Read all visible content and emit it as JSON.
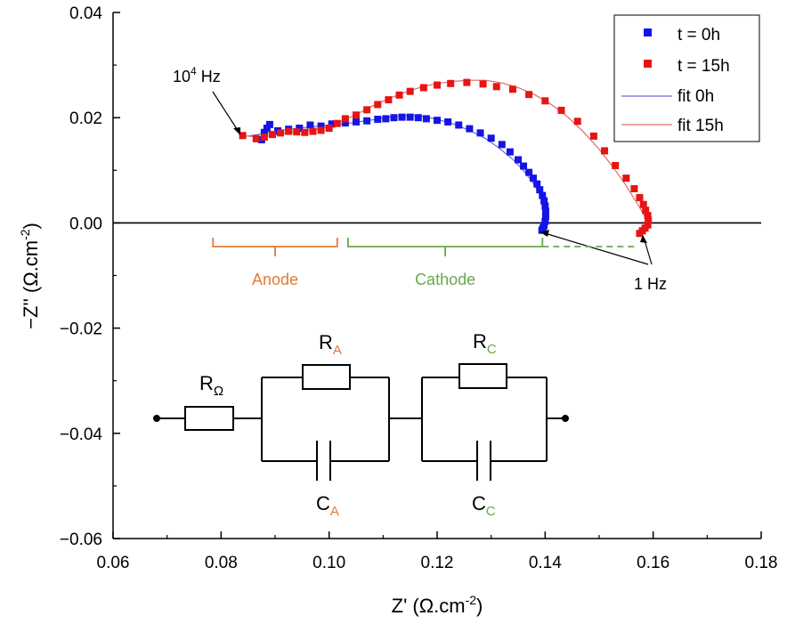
{
  "chart_data": {
    "type": "scatter",
    "x_axis": {
      "label_main": "Z' (Ω.cm",
      "label_sup": "-2",
      "label_end": ")",
      "range": [
        0.06,
        0.18
      ],
      "ticks": [
        "0.06",
        "0.08",
        "0.10",
        "0.12",
        "0.14",
        "0.16",
        "0.18"
      ],
      "tick_values": [
        0.06,
        0.08,
        0.1,
        0.12,
        0.14,
        0.16,
        0.18
      ]
    },
    "y_axis": {
      "label_main": "−Z'' (Ω.cm",
      "label_sup": "-2",
      "label_end": ")",
      "range": [
        -0.06,
        0.04
      ],
      "ticks": [
        "0.04",
        "0.02",
        "0.00",
        "−0.02",
        "−0.04",
        "−0.06"
      ],
      "tick_values": [
        0.04,
        0.02,
        0.0,
        -0.02,
        -0.04,
        -0.06
      ]
    },
    "zero_line": 0.0,
    "grid": false,
    "legend": {
      "position": "top-right",
      "entries": [
        {
          "label": "t = 0h",
          "kind": "marker",
          "color": "#1414e6"
        },
        {
          "label": "t = 15h",
          "kind": "marker",
          "color": "#e61414"
        },
        {
          "label": "fit 0h",
          "kind": "line",
          "color": "#6b6bd6"
        },
        {
          "label": "fit 15h",
          "kind": "line",
          "color": "#e06a6a"
        }
      ]
    },
    "series": [
      {
        "name": "t = 0h",
        "kind": "scatter",
        "color": "#1414e6",
        "points": [
          [
            0.0875,
            0.0158
          ],
          [
            0.088,
            0.0172
          ],
          [
            0.0885,
            0.018
          ],
          [
            0.089,
            0.0187
          ],
          [
            0.0905,
            0.0175
          ],
          [
            0.0925,
            0.0178
          ],
          [
            0.0945,
            0.018
          ],
          [
            0.0965,
            0.0186
          ],
          [
            0.0985,
            0.0184
          ],
          [
            0.1005,
            0.0188
          ],
          [
            0.103,
            0.019
          ],
          [
            0.105,
            0.0192
          ],
          [
            0.107,
            0.0194
          ],
          [
            0.109,
            0.0197
          ],
          [
            0.1105,
            0.0198
          ],
          [
            0.112,
            0.02
          ],
          [
            0.1135,
            0.0201
          ],
          [
            0.115,
            0.0201
          ],
          [
            0.1165,
            0.02
          ],
          [
            0.118,
            0.0198
          ],
          [
            0.12,
            0.0195
          ],
          [
            0.122,
            0.0192
          ],
          [
            0.124,
            0.0186
          ],
          [
            0.126,
            0.0179
          ],
          [
            0.128,
            0.0171
          ],
          [
            0.13,
            0.0161
          ],
          [
            0.132,
            0.0149
          ],
          [
            0.1335,
            0.0135
          ],
          [
            0.135,
            0.012
          ],
          [
            0.136,
            0.0108
          ],
          [
            0.137,
            0.0096
          ],
          [
            0.1378,
            0.0085
          ],
          [
            0.1385,
            0.0074
          ],
          [
            0.139,
            0.0063
          ],
          [
            0.1395,
            0.0052
          ],
          [
            0.1398,
            0.0042
          ],
          [
            0.14,
            0.0032
          ],
          [
            0.1401,
            0.0022
          ],
          [
            0.1401,
            0.0012
          ],
          [
            0.14,
            0.0003
          ],
          [
            0.1398,
            -0.0005
          ],
          [
            0.1396,
            -0.001
          ],
          [
            0.1394,
            -0.0014
          ]
        ]
      },
      {
        "name": "t = 15h",
        "kind": "scatter",
        "color": "#e61414",
        "points": [
          [
            0.084,
            0.0166
          ],
          [
            0.0865,
            0.016
          ],
          [
            0.088,
            0.0163
          ],
          [
            0.0895,
            0.0168
          ],
          [
            0.091,
            0.0171
          ],
          [
            0.0925,
            0.0174
          ],
          [
            0.094,
            0.0173
          ],
          [
            0.0955,
            0.0172
          ],
          [
            0.097,
            0.0174
          ],
          [
            0.0985,
            0.0176
          ],
          [
            0.1,
            0.018
          ],
          [
            0.1015,
            0.0189
          ],
          [
            0.103,
            0.0198
          ],
          [
            0.105,
            0.0205
          ],
          [
            0.107,
            0.0215
          ],
          [
            0.109,
            0.0225
          ],
          [
            0.111,
            0.0234
          ],
          [
            0.113,
            0.0243
          ],
          [
            0.115,
            0.025
          ],
          [
            0.1175,
            0.0257
          ],
          [
            0.12,
            0.0262
          ],
          [
            0.1225,
            0.0265
          ],
          [
            0.1255,
            0.0267
          ],
          [
            0.1285,
            0.0264
          ],
          [
            0.131,
            0.0259
          ],
          [
            0.134,
            0.0254
          ],
          [
            0.137,
            0.0244
          ],
          [
            0.14,
            0.0232
          ],
          [
            0.143,
            0.0214
          ],
          [
            0.146,
            0.0193
          ],
          [
            0.149,
            0.0165
          ],
          [
            0.151,
            0.0137
          ],
          [
            0.153,
            0.0109
          ],
          [
            0.155,
            0.0085
          ],
          [
            0.1565,
            0.0065
          ],
          [
            0.1575,
            0.0048
          ],
          [
            0.1582,
            0.0035
          ],
          [
            0.1586,
            0.0024
          ],
          [
            0.159,
            0.0014
          ],
          [
            0.1591,
            0.0005
          ],
          [
            0.159,
            -0.0004
          ],
          [
            0.1585,
            -0.001
          ],
          [
            0.158,
            -0.0015
          ],
          [
            0.1575,
            -0.002
          ]
        ]
      },
      {
        "name": "fit 0h",
        "kind": "line",
        "color": "#6b6bd6",
        "points": [
          [
            0.085,
            0.0165
          ],
          [
            0.088,
            0.017
          ],
          [
            0.092,
            0.0177
          ],
          [
            0.096,
            0.0182
          ],
          [
            0.1,
            0.0186
          ],
          [
            0.104,
            0.019
          ],
          [
            0.108,
            0.0196
          ],
          [
            0.111,
            0.0201
          ],
          [
            0.114,
            0.0204
          ],
          [
            0.117,
            0.0203
          ],
          [
            0.12,
            0.0197
          ],
          [
            0.123,
            0.0188
          ],
          [
            0.126,
            0.0176
          ],
          [
            0.129,
            0.016
          ],
          [
            0.1315,
            0.0142
          ],
          [
            0.134,
            0.0121
          ],
          [
            0.136,
            0.0099
          ],
          [
            0.1378,
            0.0076
          ],
          [
            0.139,
            0.0054
          ],
          [
            0.1398,
            0.0033
          ],
          [
            0.1401,
            0.0015
          ],
          [
            0.1401,
            0.0
          ],
          [
            0.1398,
            -0.0012
          ]
        ]
      },
      {
        "name": "fit 15h",
        "kind": "line",
        "color": "#e06a6a",
        "points": [
          [
            0.084,
            0.0166
          ],
          [
            0.087,
            0.0163
          ],
          [
            0.09,
            0.0167
          ],
          [
            0.093,
            0.0172
          ],
          [
            0.096,
            0.0175
          ],
          [
            0.099,
            0.018
          ],
          [
            0.102,
            0.0192
          ],
          [
            0.105,
            0.0206
          ],
          [
            0.108,
            0.0222
          ],
          [
            0.111,
            0.0236
          ],
          [
            0.114,
            0.0248
          ],
          [
            0.117,
            0.0258
          ],
          [
            0.12,
            0.0265
          ],
          [
            0.123,
            0.0269
          ],
          [
            0.126,
            0.0271
          ],
          [
            0.129,
            0.0271
          ],
          [
            0.132,
            0.0266
          ],
          [
            0.135,
            0.0257
          ],
          [
            0.138,
            0.0244
          ],
          [
            0.141,
            0.0226
          ],
          [
            0.144,
            0.0203
          ],
          [
            0.147,
            0.0174
          ],
          [
            0.15,
            0.014
          ],
          [
            0.1525,
            0.0107
          ],
          [
            0.1548,
            0.0074
          ],
          [
            0.1565,
            0.0046
          ],
          [
            0.1578,
            0.0024
          ],
          [
            0.1587,
            0.0007
          ],
          [
            0.159,
            -0.0006
          ],
          [
            0.1588,
            -0.0015
          ]
        ]
      }
    ],
    "annotations": {
      "freq_high": {
        "base": "10",
        "sup": "4",
        "rest": " Hz"
      },
      "freq_low": "1 Hz",
      "anode": {
        "label": "Anode",
        "color": "#e07b39",
        "x_start": 0.0785,
        "x_end": 0.1015,
        "y": -0.0045
      },
      "cathode": {
        "label": "Cathode",
        "color": "#6aa84f",
        "x_start": 0.1035,
        "x_end": 0.1395,
        "y": -0.0045
      }
    },
    "circuit": {
      "r_ohm": {
        "main": "R",
        "sub": "Ω",
        "color": "#000000"
      },
      "r_a": {
        "main": "R",
        "sub": "A",
        "color": "#e07b39"
      },
      "c_a": {
        "main": "C",
        "sub": "A",
        "color": "#e07b39"
      },
      "r_c": {
        "main": "R",
        "sub": "C",
        "color": "#6aa84f"
      },
      "c_c": {
        "main": "C",
        "sub": "C",
        "color": "#6aa84f"
      }
    }
  }
}
